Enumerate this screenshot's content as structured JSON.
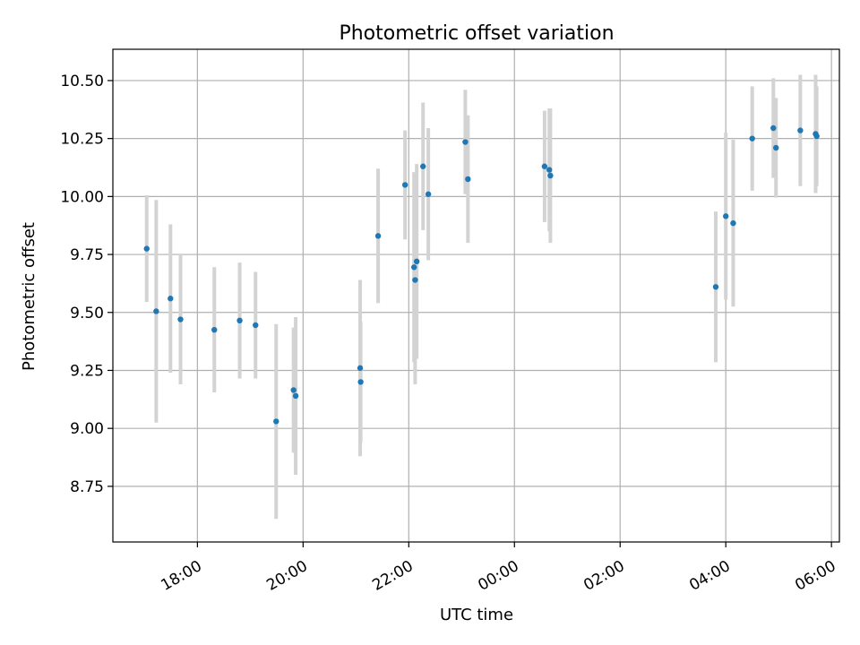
{
  "chart_data": {
    "type": "scatter",
    "title": "Photometric offset variation",
    "xlabel": "UTC time",
    "ylabel": "Photometric offset",
    "x_unit": "UTC, hours from 00:00 (negative = previous day)",
    "xlim": [
      -7.6,
      6.15
    ],
    "ylim": [
      8.51,
      10.635
    ],
    "x_ticks": [
      {
        "value": -6,
        "label": "18:00"
      },
      {
        "value": -4,
        "label": "20:00"
      },
      {
        "value": -2,
        "label": "22:00"
      },
      {
        "value": 0,
        "label": "00:00"
      },
      {
        "value": 2,
        "label": "02:00"
      },
      {
        "value": 4,
        "label": "04:00"
      },
      {
        "value": 6,
        "label": "06:00"
      }
    ],
    "y_ticks": [
      {
        "value": 8.75,
        "label": "8.75"
      },
      {
        "value": 9.0,
        "label": "9.00"
      },
      {
        "value": 9.25,
        "label": "9.25"
      },
      {
        "value": 9.5,
        "label": "9.50"
      },
      {
        "value": 9.75,
        "label": "9.75"
      },
      {
        "value": 10.0,
        "label": "10.00"
      },
      {
        "value": 10.25,
        "label": "10.25"
      },
      {
        "value": 10.5,
        "label": "10.50"
      }
    ],
    "grid": true,
    "legend": "none",
    "point_color": "#1f77b4",
    "errorbar_color": "#d3d3d3",
    "points": [
      {
        "x": -6.96,
        "y": 9.775,
        "err": 0.23
      },
      {
        "x": -6.78,
        "y": 9.505,
        "err": 0.48
      },
      {
        "x": -6.51,
        "y": 9.56,
        "err": 0.32
      },
      {
        "x": -6.32,
        "y": 9.47,
        "err": 0.28
      },
      {
        "x": -5.68,
        "y": 9.425,
        "err": 0.27
      },
      {
        "x": -5.2,
        "y": 9.465,
        "err": 0.25
      },
      {
        "x": -4.9,
        "y": 9.445,
        "err": 0.23
      },
      {
        "x": -4.51,
        "y": 9.03,
        "err": 0.42
      },
      {
        "x": -4.18,
        "y": 9.165,
        "err": 0.27
      },
      {
        "x": -4.14,
        "y": 9.14,
        "err": 0.34
      },
      {
        "x": -2.92,
        "y": 9.26,
        "err": 0.38
      },
      {
        "x": -2.91,
        "y": 9.2,
        "err": 0.26
      },
      {
        "x": -2.58,
        "y": 9.83,
        "err": 0.29
      },
      {
        "x": -2.07,
        "y": 10.05,
        "err": 0.235
      },
      {
        "x": -1.9,
        "y": 9.695,
        "err": 0.41
      },
      {
        "x": -1.88,
        "y": 9.64,
        "err": 0.45
      },
      {
        "x": -1.85,
        "y": 9.72,
        "err": 0.42
      },
      {
        "x": -1.73,
        "y": 10.13,
        "err": 0.275
      },
      {
        "x": -1.63,
        "y": 10.01,
        "err": 0.285
      },
      {
        "x": -0.93,
        "y": 10.235,
        "err": 0.225
      },
      {
        "x": -0.88,
        "y": 10.075,
        "err": 0.275
      },
      {
        "x": 0.57,
        "y": 10.13,
        "err": 0.24
      },
      {
        "x": 0.66,
        "y": 10.115,
        "err": 0.265
      },
      {
        "x": 0.68,
        "y": 10.09,
        "err": 0.29
      },
      {
        "x": 3.81,
        "y": 9.61,
        "err": 0.325
      },
      {
        "x": 4.0,
        "y": 9.915,
        "err": 0.36
      },
      {
        "x": 4.14,
        "y": 9.885,
        "err": 0.36
      },
      {
        "x": 4.5,
        "y": 10.25,
        "err": 0.225
      },
      {
        "x": 4.9,
        "y": 10.295,
        "err": 0.215
      },
      {
        "x": 4.95,
        "y": 10.21,
        "err": 0.215
      },
      {
        "x": 5.41,
        "y": 10.285,
        "err": 0.24
      },
      {
        "x": 5.7,
        "y": 10.27,
        "err": 0.255
      },
      {
        "x": 5.72,
        "y": 10.26,
        "err": 0.215
      }
    ]
  }
}
